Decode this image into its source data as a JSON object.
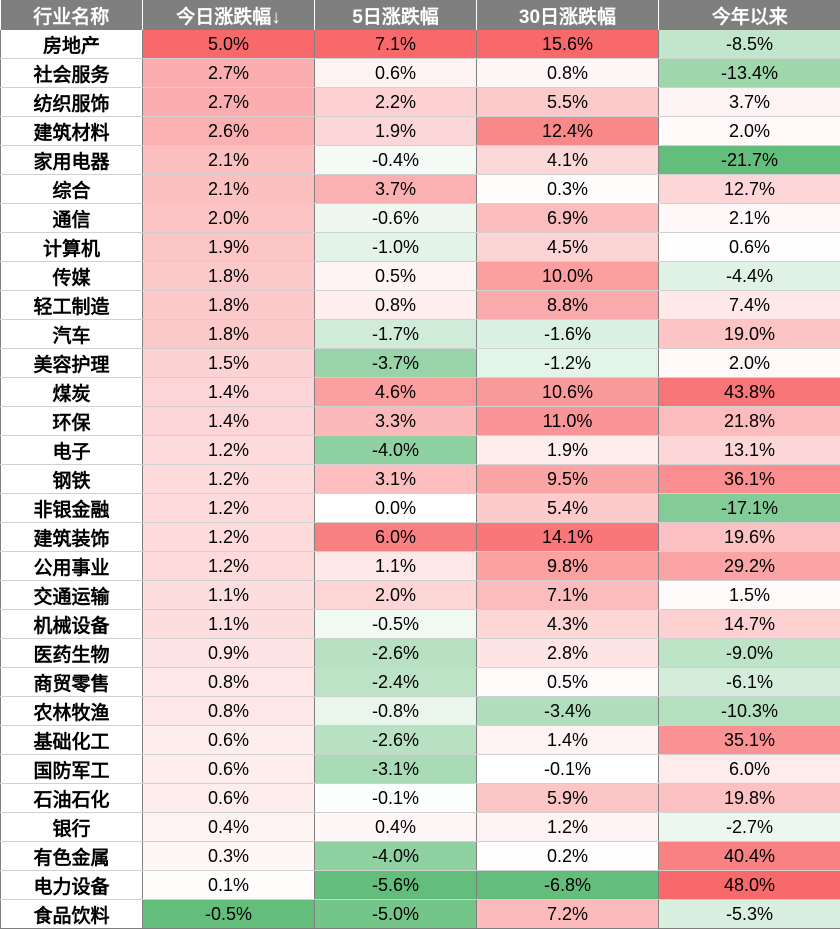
{
  "table": {
    "headers": [
      "行业名称",
      "今日涨跌幅↓",
      "5日涨跌幅",
      "30日涨跌幅",
      "今年以来"
    ],
    "rows": [
      [
        "房地产",
        "5.0%",
        "7.1%",
        "15.6%",
        "-8.5%"
      ],
      [
        "社会服务",
        "2.7%",
        "0.6%",
        "0.8%",
        "-13.4%"
      ],
      [
        "纺织服饰",
        "2.7%",
        "2.2%",
        "5.5%",
        "3.7%"
      ],
      [
        "建筑材料",
        "2.6%",
        "1.9%",
        "12.4%",
        "2.0%"
      ],
      [
        "家用电器",
        "2.1%",
        "-0.4%",
        "4.1%",
        "-21.7%"
      ],
      [
        "综合",
        "2.1%",
        "3.7%",
        "0.3%",
        "12.7%"
      ],
      [
        "通信",
        "2.0%",
        "-0.6%",
        "6.9%",
        "2.1%"
      ],
      [
        "计算机",
        "1.9%",
        "-1.0%",
        "4.5%",
        "0.6%"
      ],
      [
        "传媒",
        "1.8%",
        "0.5%",
        "10.0%",
        "-4.4%"
      ],
      [
        "轻工制造",
        "1.8%",
        "0.8%",
        "8.8%",
        "7.4%"
      ],
      [
        "汽车",
        "1.8%",
        "-1.7%",
        "-1.6%",
        "19.0%"
      ],
      [
        "美容护理",
        "1.5%",
        "-3.7%",
        "-1.2%",
        "2.0%"
      ],
      [
        "煤炭",
        "1.4%",
        "4.6%",
        "10.6%",
        "43.8%"
      ],
      [
        "环保",
        "1.4%",
        "3.3%",
        "11.0%",
        "21.8%"
      ],
      [
        "电子",
        "1.2%",
        "-4.0%",
        "1.9%",
        "13.1%"
      ],
      [
        "钢铁",
        "1.2%",
        "3.1%",
        "9.5%",
        "36.1%"
      ],
      [
        "非银金融",
        "1.2%",
        "0.0%",
        "5.4%",
        "-17.1%"
      ],
      [
        "建筑装饰",
        "1.2%",
        "6.0%",
        "14.1%",
        "19.6%"
      ],
      [
        "公用事业",
        "1.2%",
        "1.1%",
        "9.8%",
        "29.2%"
      ],
      [
        "交通运输",
        "1.1%",
        "2.0%",
        "7.1%",
        "1.5%"
      ],
      [
        "机械设备",
        "1.1%",
        "-0.5%",
        "4.3%",
        "14.7%"
      ],
      [
        "医药生物",
        "0.9%",
        "-2.6%",
        "2.8%",
        "-9.0%"
      ],
      [
        "商贸零售",
        "0.8%",
        "-2.4%",
        "0.5%",
        "-6.1%"
      ],
      [
        "农林牧渔",
        "0.8%",
        "-0.8%",
        "-3.4%",
        "-10.3%"
      ],
      [
        "基础化工",
        "0.6%",
        "-2.6%",
        "1.4%",
        "35.1%"
      ],
      [
        "国防军工",
        "0.6%",
        "-3.1%",
        "-0.1%",
        "6.0%"
      ],
      [
        "石油石化",
        "0.6%",
        "-0.1%",
        "5.9%",
        "19.8%"
      ],
      [
        "银行",
        "0.4%",
        "0.4%",
        "1.2%",
        "-2.7%"
      ],
      [
        "有色金属",
        "0.3%",
        "-4.0%",
        "0.2%",
        "40.4%"
      ],
      [
        "电力设备",
        "0.1%",
        "-5.6%",
        "-6.8%",
        "48.0%"
      ],
      [
        "食品饮料",
        "-0.5%",
        "-5.0%",
        "7.2%",
        "-5.3%"
      ]
    ]
  },
  "colors": {
    "header_bg": "#7f7f7f",
    "header_text": "#ffffff",
    "positive_max": "#f8696b",
    "negative_max": "#63be7b",
    "neutral": "#ffffff"
  }
}
